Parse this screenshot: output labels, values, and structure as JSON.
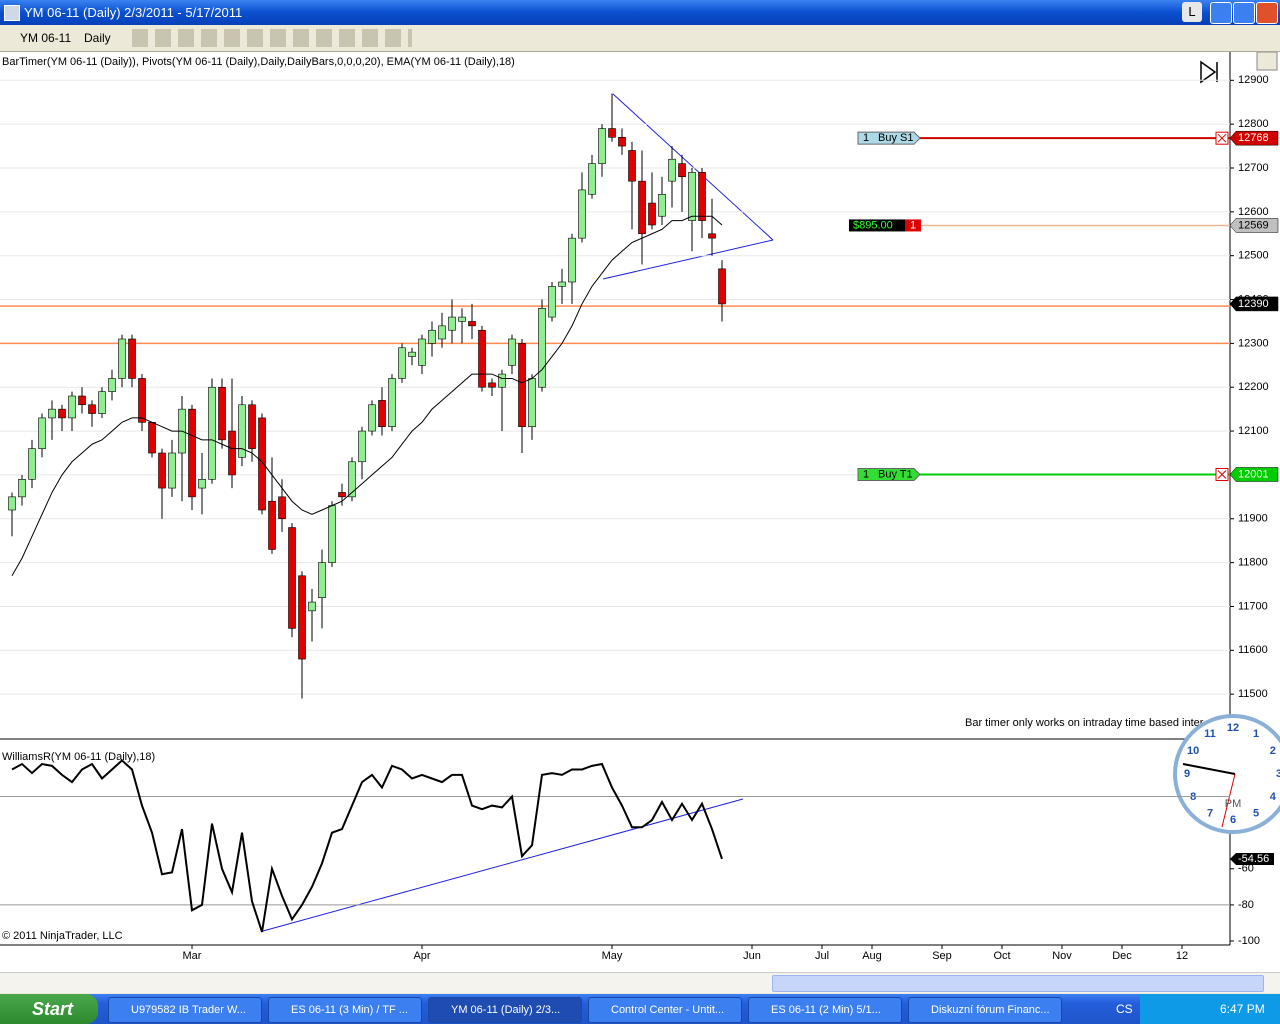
{
  "window": {
    "title": "YM 06-11 (Daily)  2/3/2011 - 5/17/2011",
    "button": "L"
  },
  "toolbar": {
    "instrument": "YM 06-11",
    "interval": "Daily"
  },
  "indicator_label": "BarTimer(YM 06-11 (Daily)), Pivots(YM 06-11 (Daily),Daily,DailyBars,0,0,0,20), EMA(YM 06-11 (Daily),18)",
  "bar_timer_note": "Bar timer only works on intraday time based inter",
  "copyright": "© 2011 NinjaTrader, LLC",
  "chart_data": [
    {
      "type": "candlestick",
      "up_color": "#90ee90",
      "down_color": "#e00000",
      "open": [
        11920,
        11950,
        11990,
        12060,
        12130,
        12150,
        12130,
        12180,
        12160,
        12140,
        12190,
        12220,
        12310,
        12220,
        12120,
        12050,
        11970,
        12050,
        12150,
        11970,
        11990,
        12200,
        12100,
        12040,
        12160,
        12130,
        11940,
        11950,
        11880,
        11770,
        11690,
        11720,
        11800,
        11960,
        11950,
        12030,
        12100,
        12170,
        12110,
        12220,
        12270,
        12250,
        12300,
        12310,
        12330,
        12350,
        12350,
        12330,
        12210,
        12200,
        12250,
        12300,
        12110,
        12200,
        12360,
        12430,
        12440,
        12540,
        12640,
        12710,
        12790,
        12770,
        12740,
        12670,
        12620,
        12590,
        12670,
        12710,
        12580,
        12690,
        12550,
        12470
      ],
      "high": [
        11960,
        12000,
        12080,
        12140,
        12170,
        12160,
        12190,
        12200,
        12170,
        12200,
        12240,
        12320,
        12320,
        12230,
        12120,
        12060,
        12080,
        12180,
        12160,
        12050,
        12220,
        12220,
        12220,
        12180,
        12170,
        12140,
        12040,
        11990,
        11890,
        11780,
        11740,
        11830,
        11940,
        11980,
        12040,
        12110,
        12170,
        12200,
        12230,
        12300,
        12290,
        12320,
        12350,
        12370,
        12400,
        12380,
        12390,
        12340,
        12220,
        12240,
        12320,
        12310,
        12230,
        12400,
        12440,
        12470,
        12550,
        12690,
        12730,
        12800,
        12870,
        12790,
        12760,
        12740,
        12690,
        12680,
        12750,
        12730,
        12700,
        12700,
        12630,
        12490
      ],
      "low": [
        11860,
        11930,
        11970,
        12040,
        12080,
        12100,
        12100,
        12140,
        12110,
        12130,
        12170,
        12200,
        12200,
        12100,
        12040,
        11900,
        11950,
        11940,
        11920,
        11910,
        11980,
        12060,
        11970,
        12020,
        12030,
        11910,
        11820,
        11870,
        11630,
        11490,
        11620,
        11650,
        11790,
        11930,
        11940,
        11990,
        12090,
        12090,
        12100,
        12210,
        12250,
        12230,
        12270,
        12290,
        12300,
        12300,
        12310,
        12190,
        12180,
        12100,
        12230,
        12050,
        12080,
        12190,
        12350,
        12390,
        12390,
        12530,
        12630,
        12680,
        12760,
        12730,
        12560,
        12480,
        12560,
        12570,
        12610,
        12600,
        12510,
        12540,
        12500,
        12350
      ],
      "close": [
        11950,
        11990,
        12060,
        12130,
        12150,
        12130,
        12180,
        12160,
        12140,
        12190,
        12220,
        12310,
        12220,
        12120,
        12050,
        11970,
        12050,
        12150,
        11950,
        11990,
        12200,
        12080,
        12000,
        12160,
        12060,
        11920,
        11830,
        11900,
        11650,
        11580,
        11710,
        11800,
        11930,
        11950,
        12030,
        12100,
        12160,
        12110,
        12220,
        12290,
        12280,
        12310,
        12330,
        12340,
        12360,
        12360,
        12340,
        12200,
        12200,
        12230,
        12310,
        12110,
        12220,
        12380,
        12430,
        12440,
        12540,
        12650,
        12710,
        12790,
        12770,
        12750,
        12670,
        12550,
        12570,
        12640,
        12720,
        12680,
        12690,
        12580,
        12540,
        12390
      ],
      "ema": [
        11770,
        11810,
        11860,
        11910,
        11960,
        12000,
        12030,
        12050,
        12070,
        12080,
        12100,
        12120,
        12130,
        12130,
        12120,
        12110,
        12100,
        12100,
        12090,
        12080,
        12080,
        12070,
        12060,
        12060,
        12050,
        12030,
        12000,
        11970,
        11940,
        11920,
        11910,
        11920,
        11930,
        11940,
        11960,
        11980,
        12000,
        12020,
        12040,
        12070,
        12100,
        12120,
        12150,
        12170,
        12190,
        12210,
        12230,
        12230,
        12230,
        12220,
        12220,
        12210,
        12220,
        12240,
        12270,
        12300,
        12340,
        12390,
        12430,
        12460,
        12490,
        12510,
        12530,
        12540,
        12550,
        12560,
        12580,
        12580,
        12590,
        12590,
        12590,
        12570
      ],
      "ema_color": "#000000",
      "pivot_levels": [
        12385,
        12300
      ],
      "pivot_color": "#ff8c50",
      "ylim": [
        11400,
        12960
      ],
      "yticks": [
        11500,
        11600,
        11700,
        11800,
        11900,
        12000,
        12100,
        12200,
        12300,
        12400,
        12500,
        12600,
        12700,
        12800,
        12900
      ],
      "xlim": [
        -1.2,
        121.8
      ],
      "xticks": [
        {
          "value": 18,
          "label": "Mar"
        },
        {
          "value": 41,
          "label": "Apr"
        },
        {
          "value": 60,
          "label": "May"
        },
        {
          "value": 74,
          "label": "Jun"
        },
        {
          "value": 81,
          "label": "Jul"
        },
        {
          "value": 86,
          "label": "Aug"
        },
        {
          "value": 93,
          "label": "Sep"
        },
        {
          "value": 99,
          "label": "Oct"
        },
        {
          "value": 105,
          "label": "Nov"
        },
        {
          "value": 111,
          "label": "Dec"
        },
        {
          "value": 117,
          "label": "12"
        }
      ],
      "last_price": 12390,
      "orders": [
        {
          "qty": 1,
          "label": "Buy S1",
          "price": 12768,
          "color": "#d00000"
        },
        {
          "qty": 1,
          "label": "Buy T1",
          "price": 12001,
          "color": "#00cc00"
        }
      ],
      "position": {
        "pnl": "$895.00",
        "qty": 1,
        "price": 12569,
        "color": "#e8b896"
      }
    },
    {
      "type": "line",
      "title": "WilliamsR(YM 06-11 (Daily),18)",
      "values": [
        -5,
        -2,
        -7,
        -2,
        -3,
        -8,
        -12,
        -5,
        -2,
        -10,
        -5,
        0,
        -5,
        -25,
        -40,
        -63,
        -62,
        -38,
        -83,
        -80,
        -35,
        -60,
        -73,
        -40,
        -78,
        -95,
        -60,
        -75,
        -88,
        -80,
        -70,
        -57,
        -40,
        -38,
        -25,
        -12,
        -8,
        -15,
        -3,
        -5,
        -10,
        -8,
        -10,
        -12,
        -8,
        -8,
        -25,
        -27,
        -25,
        -26,
        -20,
        -53,
        -47,
        -8,
        -7,
        -8,
        -5,
        -5,
        -3,
        -2,
        -15,
        -25,
        -37,
        -37,
        -33,
        -23,
        -33,
        -24,
        -33,
        -24,
        -38,
        -54.56
      ],
      "color": "#000000",
      "levels": [
        -20,
        -80
      ],
      "ylim": [
        -100,
        8
      ],
      "yticks": [
        -100,
        -80,
        -60
      ]
    }
  ],
  "clock": {
    "numbers": [
      "12",
      "1",
      "2",
      "3",
      "4",
      "5",
      "6",
      "7",
      "8",
      "9",
      "10",
      "11"
    ],
    "label": "PM"
  },
  "taskbar": {
    "start": "Start",
    "items": [
      "U979582 IB Trader W...",
      "ES 06-11 (3 Min) / TF ...",
      "YM 06-11 (Daily)  2/3...",
      "Control Center - Untit...",
      "ES 06-11 (2 Min)  5/1...",
      "Diskuzní fórum Financ..."
    ],
    "language": "CS",
    "time": "6:47 PM"
  }
}
